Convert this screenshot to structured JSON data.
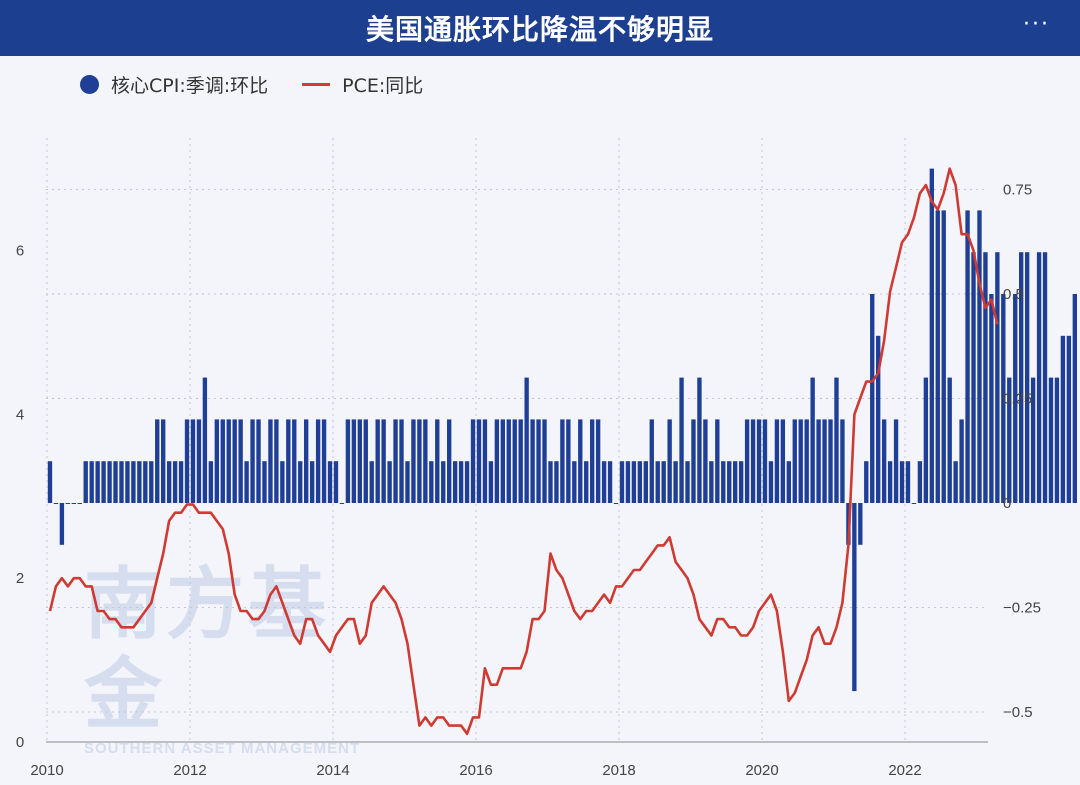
{
  "header": {
    "title": "美国通胀环比降温不够明显",
    "more_label": "···"
  },
  "watermark": {
    "cn": "南方基金",
    "en": "SOUTHERN ASSET MANAGEMENT"
  },
  "legend": {
    "bar_label": "核心CPI:季调:环比",
    "line_label": "PCE:同比"
  },
  "colors": {
    "bar": "#1f3f97",
    "line": "#cf3a33",
    "header": "#1d3f8f",
    "grid": "#c4c8d3"
  },
  "chart_data": {
    "type": "bar+line",
    "x_ticks": [
      "2010",
      "2012",
      "2014",
      "2016",
      "2018",
      "2020",
      "2022"
    ],
    "left_axis": {
      "ticks": [
        "0",
        "2",
        "4",
        "6"
      ],
      "ylim": [
        0,
        8.2
      ]
    },
    "right_axis": {
      "ticks": [
        "0.75",
        "0.5",
        "0.25",
        "0",
        "−0.25",
        "−0.5"
      ],
      "ylim": [
        -0.58,
        0.88
      ]
    },
    "grid": "vertical dotted lines at years",
    "series": [
      {
        "name": "核心CPI:季调:环比",
        "kind": "bar",
        "axis": "right",
        "start": "2010-01",
        "values": [
          0.1,
          0.0,
          -0.1,
          0.0,
          0.0,
          0.0,
          0.1,
          0.1,
          0.1,
          0.1,
          0.1,
          0.1,
          0.1,
          0.1,
          0.1,
          0.1,
          0.1,
          0.1,
          0.2,
          0.2,
          0.1,
          0.1,
          0.1,
          0.2,
          0.2,
          0.2,
          0.3,
          0.1,
          0.2,
          0.2,
          0.2,
          0.2,
          0.2,
          0.1,
          0.2,
          0.2,
          0.1,
          0.2,
          0.2,
          0.1,
          0.2,
          0.2,
          0.1,
          0.2,
          0.1,
          0.2,
          0.2,
          0.1,
          0.1,
          0.0,
          0.2,
          0.2,
          0.2,
          0.2,
          0.1,
          0.2,
          0.2,
          0.1,
          0.2,
          0.2,
          0.1,
          0.2,
          0.2,
          0.2,
          0.1,
          0.2,
          0.1,
          0.2,
          0.1,
          0.1,
          0.1,
          0.2,
          0.2,
          0.2,
          0.1,
          0.2,
          0.2,
          0.2,
          0.2,
          0.2,
          0.3,
          0.2,
          0.2,
          0.2,
          0.1,
          0.1,
          0.2,
          0.2,
          0.1,
          0.2,
          0.1,
          0.2,
          0.2,
          0.1,
          0.1,
          0.0,
          0.1,
          0.1,
          0.1,
          0.1,
          0.1,
          0.2,
          0.1,
          0.1,
          0.2,
          0.1,
          0.3,
          0.1,
          0.2,
          0.3,
          0.2,
          0.1,
          0.2,
          0.1,
          0.1,
          0.1,
          0.1,
          0.2,
          0.2,
          0.2,
          0.2,
          0.1,
          0.2,
          0.2,
          0.1,
          0.2,
          0.2,
          0.2,
          0.3,
          0.2,
          0.2,
          0.2,
          0.3,
          0.2,
          -0.1,
          -0.45,
          -0.1,
          0.1,
          0.5,
          0.4,
          0.2,
          0.1,
          0.2,
          0.1,
          0.1,
          0.0,
          0.1,
          0.3,
          0.8,
          0.7,
          0.7,
          0.3,
          0.1,
          0.2,
          0.7,
          0.6,
          0.7,
          0.6,
          0.5,
          0.6,
          0.5,
          0.3,
          0.5,
          0.6,
          0.6,
          0.3,
          0.6,
          0.6,
          0.3,
          0.3,
          0.4,
          0.4,
          0.5
        ]
      },
      {
        "name": "PCE:同比",
        "kind": "line",
        "axis": "left",
        "start": "2010-01",
        "values": [
          1.6,
          1.9,
          2.0,
          1.9,
          2.0,
          2.0,
          1.9,
          1.9,
          1.6,
          1.6,
          1.5,
          1.5,
          1.4,
          1.4,
          1.4,
          1.5,
          1.6,
          1.7,
          2.0,
          2.3,
          2.7,
          2.8,
          2.8,
          2.9,
          2.9,
          2.8,
          2.8,
          2.8,
          2.7,
          2.6,
          2.3,
          1.8,
          1.6,
          1.6,
          1.5,
          1.5,
          1.6,
          1.8,
          1.9,
          1.7,
          1.5,
          1.3,
          1.2,
          1.5,
          1.5,
          1.3,
          1.2,
          1.1,
          1.3,
          1.4,
          1.5,
          1.5,
          1.2,
          1.3,
          1.7,
          1.8,
          1.9,
          1.8,
          1.7,
          1.5,
          1.2,
          0.7,
          0.2,
          0.3,
          0.2,
          0.3,
          0.3,
          0.2,
          0.2,
          0.2,
          0.1,
          0.3,
          0.3,
          0.9,
          0.7,
          0.7,
          0.9,
          0.9,
          0.9,
          0.9,
          1.1,
          1.5,
          1.5,
          1.6,
          2.3,
          2.1,
          2.0,
          1.8,
          1.6,
          1.5,
          1.6,
          1.6,
          1.7,
          1.8,
          1.7,
          1.9,
          1.9,
          2.0,
          2.1,
          2.1,
          2.2,
          2.3,
          2.4,
          2.4,
          2.5,
          2.2,
          2.1,
          2.0,
          1.8,
          1.5,
          1.4,
          1.3,
          1.5,
          1.5,
          1.4,
          1.4,
          1.3,
          1.3,
          1.4,
          1.6,
          1.7,
          1.8,
          1.6,
          1.1,
          0.5,
          0.6,
          0.8,
          1.0,
          1.3,
          1.4,
          1.2,
          1.2,
          1.4,
          1.7,
          2.4,
          4.0,
          4.2,
          4.4,
          4.4,
          4.5,
          4.9,
          5.5,
          5.8,
          6.1,
          6.2,
          6.4,
          6.7,
          6.8,
          6.6,
          6.5,
          6.7,
          7.0,
          6.8,
          6.2,
          6.2,
          6.0,
          5.6,
          5.3,
          5.4,
          5.1
        ]
      }
    ]
  }
}
